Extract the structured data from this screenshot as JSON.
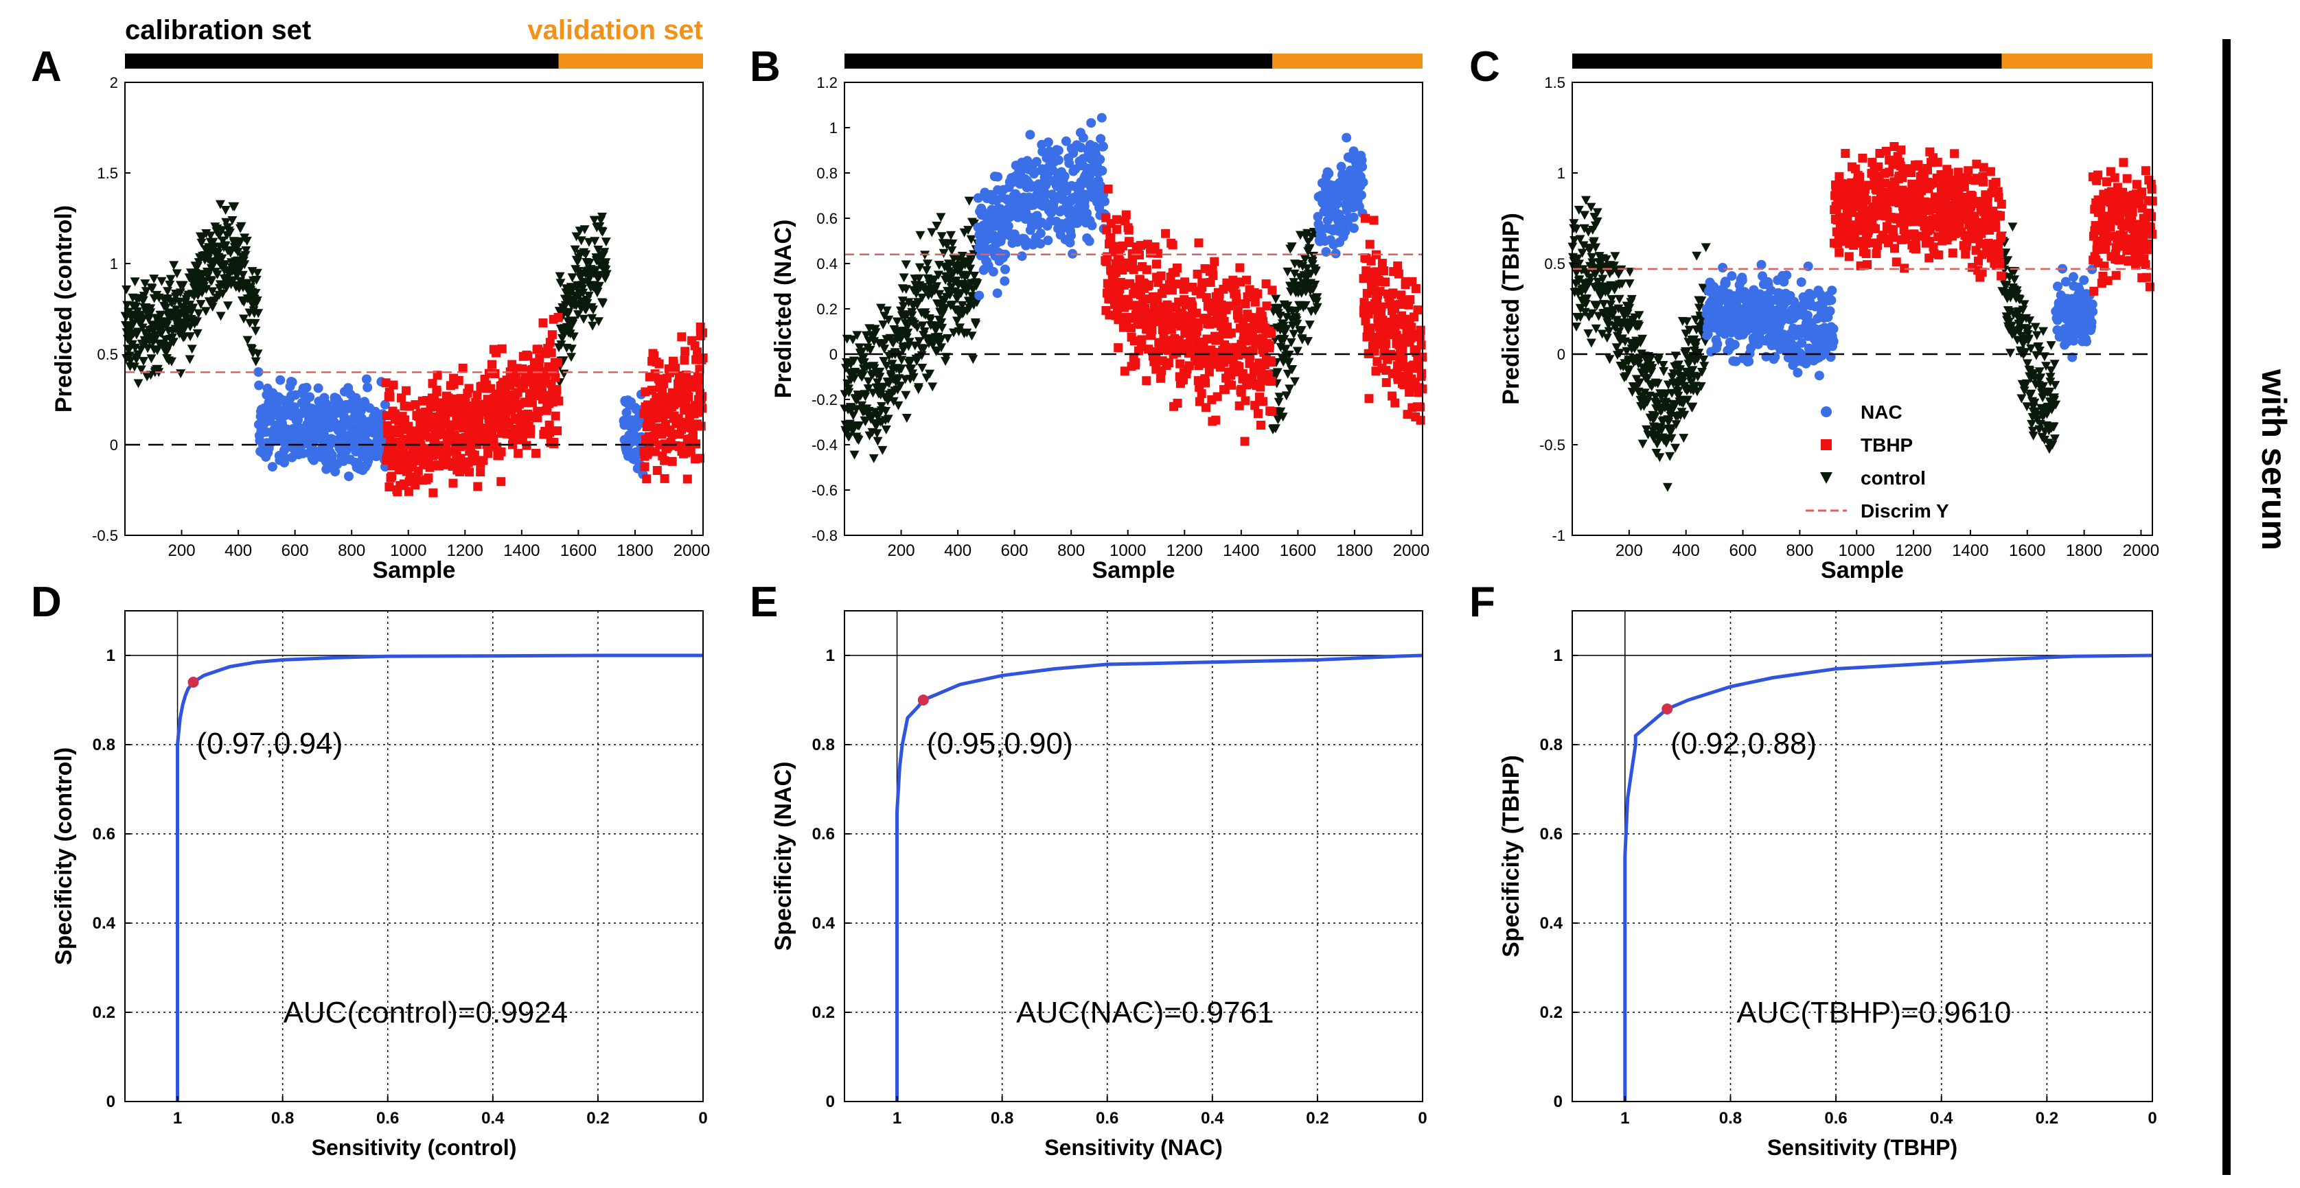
{
  "figure": {
    "header_calibration": "calibration set",
    "header_validation": "validation set",
    "side_label": "with serum",
    "colors": {
      "calibration_bar": "#000000",
      "validation_bar": "#f29018",
      "validation_text": "#f29018",
      "nac": "#3b6fe8",
      "tbhp": "#f01010",
      "control": "#0a1a0a",
      "discrim": "#e06060",
      "roc": "#2f55e0",
      "roc_point": "#d0304a"
    },
    "legend": {
      "nac": "NAC",
      "tbhp": "TBHP",
      "control": "control",
      "discrim": "Discrim Y"
    }
  },
  "chart_data": [
    {
      "panel": "A",
      "type": "scatter",
      "title": "",
      "xlabel": "Sample",
      "ylabel": "Predicted (control)",
      "xlim": [
        0,
        2040
      ],
      "ylim": [
        -0.5,
        2
      ],
      "xticks": [
        200,
        400,
        600,
        800,
        1000,
        1200,
        1400,
        1600,
        1800,
        2000
      ],
      "yticks": [
        -0.5,
        0,
        0.5,
        1,
        1.5,
        2
      ],
      "ytick_labels": [
        "-0.5",
        "0",
        "0.5",
        "1",
        "1.5",
        "2"
      ],
      "calibration_range": [
        0,
        1530
      ],
      "validation_range": [
        1530,
        2040
      ],
      "discrim_y": 0.4,
      "series": [
        {
          "name": "control",
          "marker": "triangle-down",
          "segments": [
            {
              "x0": 0,
              "x1": 470,
              "levels": [
                [
                  0,
                  0.6
                ],
                [
                  200,
                  0.7
                ],
                [
                  280,
                  0.95
                ],
                [
                  380,
                  1.1
                ],
                [
                  470,
                  0.7
                ]
              ],
              "spread": 0.38
            },
            {
              "x0": 1530,
              "x1": 1700,
              "levels": [
                [
                  0,
                  0.6
                ],
                [
                  80,
                  0.9
                ],
                [
                  170,
                  1.0
                ]
              ],
              "spread": 0.4
            }
          ]
        },
        {
          "name": "NAC",
          "marker": "circle",
          "segments": [
            {
              "x0": 470,
              "x1": 920,
              "levels": [
                [
                  0,
                  0.1
                ],
                [
                  450,
                  0.05
                ]
              ],
              "spread": 0.35
            },
            {
              "x0": 1760,
              "x1": 1830,
              "levels": [
                [
                  0,
                  0.1
                ],
                [
                  70,
                  0.05
                ]
              ],
              "spread": 0.3
            }
          ]
        },
        {
          "name": "TBHP",
          "marker": "square",
          "segments": [
            {
              "x0": 920,
              "x1": 1530,
              "levels": [
                [
                  0,
                  0.0
                ],
                [
                  300,
                  0.1
                ],
                [
                  610,
                  0.35
                ]
              ],
              "spread": 0.45
            },
            {
              "x0": 1830,
              "x1": 2040,
              "levels": [
                [
                  0,
                  0.1
                ],
                [
                  210,
                  0.3
                ]
              ],
              "spread": 0.5
            }
          ]
        }
      ]
    },
    {
      "panel": "B",
      "type": "scatter",
      "title": "",
      "xlabel": "Sample",
      "ylabel": "Predicted (NAC)",
      "xlim": [
        0,
        2040
      ],
      "ylim": [
        -0.8,
        1.2
      ],
      "xticks": [
        200,
        400,
        600,
        800,
        1000,
        1200,
        1400,
        1600,
        1800,
        2000
      ],
      "yticks": [
        -0.8,
        -0.6,
        -0.4,
        -0.2,
        0,
        0.2,
        0.4,
        0.6,
        0.8,
        1,
        1.2
      ],
      "ytick_labels": [
        "-0.8",
        "-0.6",
        "-0.4",
        "-0.2",
        "0",
        "0.2",
        "0.4",
        "0.6",
        "0.8",
        "1",
        "1.2"
      ],
      "calibration_range": [
        0,
        1510
      ],
      "validation_range": [
        1510,
        2040
      ],
      "discrim_y": 0.44,
      "series": [
        {
          "name": "control",
          "marker": "triangle-down",
          "segments": [
            {
              "x0": 0,
              "x1": 470,
              "levels": [
                [
                  0,
                  -0.15
                ],
                [
                  150,
                  -0.1
                ],
                [
                  300,
                  0.2
                ],
                [
                  470,
                  0.35
                ]
              ],
              "spread": 0.45
            },
            {
              "x0": 1510,
              "x1": 1670,
              "levels": [
                [
                  0,
                  -0.1
                ],
                [
                  80,
                  0.2
                ],
                [
                  160,
                  0.4
                ]
              ],
              "spread": 0.45
            }
          ]
        },
        {
          "name": "NAC",
          "marker": "circle",
          "segments": [
            {
              "x0": 470,
              "x1": 920,
              "levels": [
                [
                  0,
                  0.5
                ],
                [
                  200,
                  0.7
                ],
                [
                  450,
                  0.75
                ]
              ],
              "spread": 0.35
            },
            {
              "x0": 1670,
              "x1": 1830,
              "levels": [
                [
                  0,
                  0.6
                ],
                [
                  160,
                  0.75
                ]
              ],
              "spread": 0.3
            }
          ]
        },
        {
          "name": "TBHP",
          "marker": "square",
          "segments": [
            {
              "x0": 920,
              "x1": 1510,
              "levels": [
                [
                  0,
                  0.4
                ],
                [
                  200,
                  0.15
                ],
                [
                  590,
                  0.0
                ]
              ],
              "spread": 0.45
            },
            {
              "x0": 1830,
              "x1": 2040,
              "levels": [
                [
                  0,
                  0.25
                ],
                [
                  210,
                  -0.05
                ]
              ],
              "spread": 0.45
            }
          ]
        }
      ]
    },
    {
      "panel": "C",
      "type": "scatter",
      "title": "",
      "xlabel": "Sample",
      "ylabel": "Predicted (TBHP)",
      "xlim": [
        0,
        2040
      ],
      "ylim": [
        -1,
        1.5
      ],
      "xticks": [
        200,
        400,
        600,
        800,
        1000,
        1200,
        1400,
        1600,
        1800,
        2000
      ],
      "yticks": [
        -1,
        -0.5,
        0,
        0.5,
        1,
        1.5
      ],
      "ytick_labels": [
        "-1",
        "-0.5",
        "0",
        "0.5",
        "1",
        "1.5"
      ],
      "calibration_range": [
        0,
        1510
      ],
      "validation_range": [
        1510,
        2040
      ],
      "discrim_y": 0.47,
      "series": [
        {
          "name": "control",
          "marker": "triangle-down",
          "segments": [
            {
              "x0": 0,
              "x1": 470,
              "levels": [
                [
                  0,
                  0.5
                ],
                [
                  150,
                  0.3
                ],
                [
                  330,
                  -0.4
                ],
                [
                  470,
                  0.2
                ]
              ],
              "spread": 0.5
            },
            {
              "x0": 1510,
              "x1": 1700,
              "levels": [
                [
                  0,
                  0.5
                ],
                [
                  100,
                  -0.1
                ],
                [
                  190,
                  -0.3
                ]
              ],
              "spread": 0.45
            }
          ]
        },
        {
          "name": "NAC",
          "marker": "circle",
          "segments": [
            {
              "x0": 470,
              "x1": 920,
              "levels": [
                [
                  0,
                  0.25
                ],
                [
                  450,
                  0.15
                ]
              ],
              "spread": 0.35
            },
            {
              "x0": 1700,
              "x1": 1830,
              "levels": [
                [
                  0,
                  0.25
                ],
                [
                  130,
                  0.2
                ]
              ],
              "spread": 0.3
            }
          ]
        },
        {
          "name": "TBHP",
          "marker": "square",
          "segments": [
            {
              "x0": 920,
              "x1": 1510,
              "levels": [
                [
                  0,
                  0.75
                ],
                [
                  300,
                  0.85
                ],
                [
                  590,
                  0.7
                ]
              ],
              "spread": 0.4
            },
            {
              "x0": 1830,
              "x1": 2040,
              "levels": [
                [
                  0,
                  0.7
                ],
                [
                  210,
                  0.75
                ]
              ],
              "spread": 0.5
            }
          ]
        }
      ]
    },
    {
      "panel": "D",
      "type": "line",
      "title": "",
      "xlabel": "Sensitivity (control)",
      "ylabel": "Specificity (control)",
      "xlim": [
        1.1,
        0
      ],
      "ylim": [
        0,
        1.1
      ],
      "xticks": [
        1,
        0.8,
        0.6,
        0.4,
        0.2,
        0
      ],
      "xtick_labels": [
        "1",
        "0.8",
        "0.6",
        "0.4",
        "0.2",
        "0"
      ],
      "yticks": [
        0,
        0.2,
        0.4,
        0.6,
        0.8,
        1
      ],
      "ytick_labels": [
        "0",
        "0.2",
        "0.4",
        "0.6",
        "0.8",
        "1"
      ],
      "x": [
        1,
        1,
        0.995,
        0.99,
        0.985,
        0.98,
        0.97,
        0.95,
        0.9,
        0.85,
        0.8,
        0.7,
        0.6,
        0.4,
        0.2,
        0
      ],
      "y": [
        0,
        0.8,
        0.86,
        0.89,
        0.91,
        0.925,
        0.94,
        0.955,
        0.975,
        0.985,
        0.99,
        0.995,
        0.998,
        0.999,
        1,
        1
      ],
      "operating_point": [
        0.97,
        0.94
      ],
      "operating_label": "(0.97,0.94)",
      "auc_label": "AUC(control)=0.9924"
    },
    {
      "panel": "E",
      "type": "line",
      "title": "",
      "xlabel": "Sensitivity (NAC)",
      "ylabel": "Specificity (NAC)",
      "xlim": [
        1.1,
        0
      ],
      "ylim": [
        0,
        1.1
      ],
      "xticks": [
        1,
        0.8,
        0.6,
        0.4,
        0.2,
        0
      ],
      "xtick_labels": [
        "1",
        "0.8",
        "0.6",
        "0.4",
        "0.2",
        "0"
      ],
      "yticks": [
        0,
        0.2,
        0.4,
        0.6,
        0.8,
        1
      ],
      "ytick_labels": [
        "0",
        "0.2",
        "0.4",
        "0.6",
        "0.8",
        "1"
      ],
      "x": [
        1,
        1,
        0.995,
        0.99,
        0.98,
        0.96,
        0.95,
        0.92,
        0.88,
        0.8,
        0.7,
        0.6,
        0.4,
        0.2,
        0.05,
        0
      ],
      "y": [
        0,
        0.65,
        0.75,
        0.8,
        0.86,
        0.885,
        0.9,
        0.915,
        0.935,
        0.955,
        0.97,
        0.98,
        0.985,
        0.99,
        0.998,
        1
      ],
      "operating_point": [
        0.95,
        0.9
      ],
      "operating_label": "(0.95,0.90)",
      "auc_label": "AUC(NAC)=0.9761"
    },
    {
      "panel": "F",
      "type": "line",
      "title": "",
      "xlabel": "Sensitivity (TBHP)",
      "ylabel": "Specificity (TBHP)",
      "xlim": [
        1.1,
        0
      ],
      "ylim": [
        0,
        1.1
      ],
      "xticks": [
        1,
        0.8,
        0.6,
        0.4,
        0.2,
        0
      ],
      "xtick_labels": [
        "1",
        "0.8",
        "0.6",
        "0.4",
        "0.2",
        "0"
      ],
      "yticks": [
        0,
        0.2,
        0.4,
        0.6,
        0.8,
        1
      ],
      "ytick_labels": [
        "0",
        "0.2",
        "0.4",
        "0.6",
        "0.8",
        "1"
      ],
      "x": [
        1,
        1,
        0.995,
        0.99,
        0.985,
        0.98,
        0.98,
        0.95,
        0.92,
        0.88,
        0.8,
        0.72,
        0.6,
        0.45,
        0.3,
        0.15,
        0
      ],
      "y": [
        0,
        0.55,
        0.68,
        0.72,
        0.76,
        0.8,
        0.82,
        0.85,
        0.88,
        0.9,
        0.93,
        0.95,
        0.97,
        0.98,
        0.99,
        0.998,
        1
      ],
      "operating_point": [
        0.92,
        0.88
      ],
      "operating_label": "(0.92,0.88)",
      "auc_label": "AUC(TBHP)=0.9610"
    }
  ]
}
